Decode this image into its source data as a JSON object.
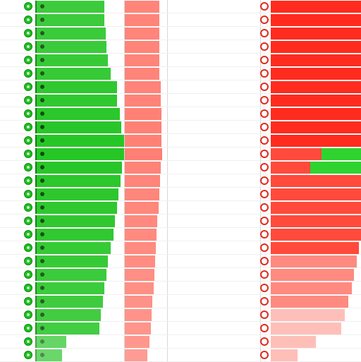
{
  "colors": {
    "green": "#27c627",
    "green_dark": "#0e7f0e",
    "red": "#ff3b30",
    "red_light": "#ff7a6e",
    "accent_green": "#2fd32f"
  },
  "rows": [
    {
      "num": "",
      "glabel": "",
      "g": 0.78,
      "rl": "",
      "r": 0.85,
      "m": "",
      "rrs": "",
      "rrl": "",
      "rr": 1.0,
      "ac": 0
    },
    {
      "num": "",
      "glabel": "",
      "g": 0.78,
      "rl": "",
      "r": 0.85,
      "m": "",
      "rrs": "",
      "rrl": "",
      "rr": 1.0,
      "ac": 0
    },
    {
      "num": "",
      "glabel": "",
      "g": 0.79,
      "rl": "",
      "r": 0.85,
      "m": "",
      "rrs": "",
      "rrl": "",
      "rr": 1.0,
      "ac": 0
    },
    {
      "num": "",
      "glabel": "",
      "g": 0.8,
      "rl": "",
      "r": 0.85,
      "m": "",
      "rrs": "",
      "rrl": "",
      "rr": 1.0,
      "ac": 0
    },
    {
      "num": "",
      "glabel": "",
      "g": 0.82,
      "rl": "",
      "r": 0.85,
      "m": "",
      "rrs": "",
      "rrl": "",
      "rr": 1.0,
      "ac": 0
    },
    {
      "num": "",
      "glabel": "",
      "g": 0.85,
      "rl": "",
      "r": 0.85,
      "m": "",
      "rrs": "",
      "rrl": "",
      "rr": 1.0,
      "ac": 0
    },
    {
      "num": "",
      "glabel": "",
      "g": 0.92,
      "rl": "",
      "r": 0.88,
      "m": "",
      "rrs": "",
      "rrl": "",
      "rr": 1.0,
      "ac": 0
    },
    {
      "num": "",
      "glabel": "",
      "g": 0.92,
      "rl": "",
      "r": 0.88,
      "m": "",
      "rrs": "",
      "rrl": "",
      "rr": 1.0,
      "ac": 0
    },
    {
      "num": "",
      "glabel": "",
      "g": 0.95,
      "rl": "",
      "r": 0.9,
      "m": "",
      "rrs": "",
      "rrl": "",
      "rr": 1.0,
      "ac": 0
    },
    {
      "num": "",
      "glabel": "",
      "g": 0.97,
      "rl": "",
      "r": 0.9,
      "m": "",
      "rrs": "",
      "rrl": "",
      "rr": 1.0,
      "ac": 0
    },
    {
      "num": "",
      "glabel": "",
      "g": 1.0,
      "rl": "",
      "r": 0.9,
      "m": "",
      "rrs": "",
      "rrl": "",
      "rr": 1.0,
      "ac": 0
    },
    {
      "num": "",
      "glabel": "",
      "g": 1.0,
      "rl": "",
      "r": 0.92,
      "m": "",
      "rrs": "",
      "rrl": "",
      "rr": 1.0,
      "ac": 0.44
    },
    {
      "num": "",
      "glabel": "",
      "g": 0.98,
      "rl": "",
      "r": 0.88,
      "m": "",
      "rrs": "",
      "rrl": "",
      "rr": 1.0,
      "ac": 0.56
    },
    {
      "num": "",
      "glabel": "",
      "g": 0.96,
      "rl": "",
      "r": 0.86,
      "m": "",
      "rrs": "",
      "rrl": "",
      "rr": 1.0,
      "ac": 0
    },
    {
      "num": "",
      "glabel": "",
      "g": 0.94,
      "rl": "",
      "r": 0.84,
      "m": "",
      "rrs": "",
      "rrl": "",
      "rr": 1.0,
      "ac": 0
    },
    {
      "num": "",
      "glabel": "",
      "g": 0.92,
      "rl": "",
      "r": 0.82,
      "m": "",
      "rrs": "",
      "rrl": "",
      "rr": 1.0,
      "ac": 0
    },
    {
      "num": "",
      "glabel": "",
      "g": 0.9,
      "rl": "",
      "r": 0.8,
      "m": "",
      "rrs": "",
      "rrl": "",
      "rr": 1.0,
      "ac": 0
    },
    {
      "num": "",
      "glabel": "",
      "g": 0.88,
      "rl": "",
      "r": 0.78,
      "m": "",
      "rrs": "",
      "rrl": "",
      "rr": 1.0,
      "ac": 0
    },
    {
      "num": "",
      "glabel": "",
      "g": 0.85,
      "rl": "",
      "r": 0.76,
      "m": "",
      "rrs": "",
      "rrl": "",
      "rr": 0.98,
      "ac": 0
    },
    {
      "num": "",
      "glabel": "",
      "g": 0.82,
      "rl": "",
      "r": 0.74,
      "m": "",
      "rrs": "",
      "rrl": "",
      "rr": 0.95,
      "ac": 0
    },
    {
      "num": "",
      "glabel": "",
      "g": 0.8,
      "rl": "",
      "r": 0.72,
      "m": "",
      "rrs": "",
      "rrl": "",
      "rr": 0.92,
      "ac": 0
    },
    {
      "num": "",
      "glabel": "",
      "g": 0.78,
      "rl": "",
      "r": 0.7,
      "m": "",
      "rrs": "",
      "rrl": "",
      "rr": 0.9,
      "ac": 0
    },
    {
      "num": "",
      "glabel": "",
      "g": 0.76,
      "rl": "",
      "r": 0.68,
      "m": "",
      "rrs": "",
      "rrl": "",
      "rr": 0.86,
      "ac": 0
    },
    {
      "num": "",
      "glabel": "",
      "g": 0.74,
      "rl": "",
      "r": 0.66,
      "m": "",
      "rrs": "",
      "rrl": "",
      "rr": 0.82,
      "ac": 0
    },
    {
      "num": "",
      "glabel": "",
      "g": 0.72,
      "rl": "",
      "r": 0.64,
      "m": "",
      "rrs": "",
      "rrl": "",
      "rr": 0.78,
      "ac": 0
    },
    {
      "num": "",
      "glabel": "",
      "g": 0.35,
      "rl": "",
      "r": 0.6,
      "m": "",
      "rrs": "",
      "rrl": "",
      "rr": 0.5,
      "ac": 0
    },
    {
      "num": "",
      "glabel": "",
      "g": 0.3,
      "rl": "",
      "r": 0.55,
      "m": "",
      "rrs": "",
      "rrl": "",
      "rr": 0.3,
      "ac": 0
    }
  ]
}
